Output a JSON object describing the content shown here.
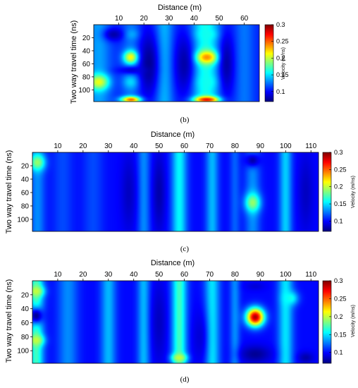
{
  "colors": {
    "jet": [
      "#00007f",
      "#0000ff",
      "#007fff",
      "#00ffff",
      "#7fff7f",
      "#ffff00",
      "#ff7f00",
      "#ff0000",
      "#7f0000"
    ],
    "axis": "#000000",
    "background": "#ffffff"
  },
  "chart_data": [
    {
      "type": "heatmap",
      "caption": "(b)",
      "title": "",
      "xlabel": "Distance (m)",
      "ylabel": "Two way travel time (ns)",
      "x_axis_position": "top",
      "xlim": [
        0,
        66
      ],
      "ylim": [
        0,
        118
      ],
      "y_inverted": true,
      "xticks": [
        10,
        20,
        30,
        40,
        50,
        60
      ],
      "yticks": [
        20,
        40,
        60,
        80,
        100
      ],
      "grid": false,
      "colorbar": {
        "label": "Velocity (m/ns)",
        "range": [
          0.07,
          0.3
        ],
        "ticks": [
          "0.1",
          "0.15",
          "0.2",
          "0.25",
          "0.3"
        ],
        "tick_values": [
          0.1,
          0.15,
          0.2,
          0.25,
          0.3
        ],
        "position": "right"
      },
      "background_value": 0.105,
      "column_bands": [
        {
          "x": 2,
          "w": 5,
          "v": 0.135
        },
        {
          "x": 15,
          "w": 4,
          "v": 0.125
        },
        {
          "x": 28,
          "w": 4,
          "v": 0.14
        },
        {
          "x": 44.5,
          "w": 6,
          "v": 0.16
        },
        {
          "x": 60,
          "w": 4,
          "v": 0.125
        }
      ],
      "anomalies": [
        {
          "x": 15,
          "y": 50,
          "sx": 3,
          "sy": 10,
          "v": 0.22
        },
        {
          "x": 45,
          "y": 50,
          "sx": 4.5,
          "sy": 10,
          "v": 0.24
        },
        {
          "x": 2,
          "y": 88,
          "sx": 4,
          "sy": 12,
          "v": 0.21
        },
        {
          "x": 15,
          "y": 115,
          "sx": 4,
          "sy": 5,
          "v": 0.25
        },
        {
          "x": 45,
          "y": 115,
          "sx": 5,
          "sy": 5,
          "v": 0.27
        },
        {
          "x": 15,
          "y": 88,
          "sx": 3,
          "sy": 10,
          "v": 0.15
        },
        {
          "x": 45,
          "y": 88,
          "sx": 4,
          "sy": 10,
          "v": 0.16
        },
        {
          "x": 15,
          "y": 15,
          "sx": 3,
          "sy": 8,
          "v": 0.14
        },
        {
          "x": 45,
          "y": 15,
          "sx": 4,
          "sy": 8,
          "v": 0.16
        }
      ],
      "lows": [
        {
          "x": 22,
          "y": 60,
          "sx": 4,
          "sy": 50,
          "v": 0.075
        },
        {
          "x": 36,
          "y": 60,
          "sx": 4,
          "sy": 50,
          "v": 0.08
        },
        {
          "x": 53,
          "y": 60,
          "sx": 3,
          "sy": 50,
          "v": 0.08
        },
        {
          "x": 8,
          "y": 15,
          "sx": 4,
          "sy": 10,
          "v": 0.08
        },
        {
          "x": 15,
          "y": 70,
          "sx": 6,
          "sy": 6,
          "v": 0.09
        }
      ]
    },
    {
      "type": "heatmap",
      "caption": "(c)",
      "title": "",
      "xlabel": "Distance (m)",
      "ylabel": "Two way travel time (ns)",
      "x_axis_position": "top",
      "xlim": [
        0,
        113
      ],
      "ylim": [
        0,
        118
      ],
      "y_inverted": true,
      "xticks": [
        10,
        20,
        30,
        40,
        50,
        60,
        70,
        80,
        90,
        100,
        110
      ],
      "yticks": [
        20,
        40,
        60,
        80,
        100
      ],
      "grid": false,
      "colorbar": {
        "label": "Velocity (m/ns)",
        "range": [
          0.07,
          0.3
        ],
        "ticks": [
          "0.1",
          "0.15",
          "0.2",
          "0.25",
          "0.3"
        ],
        "tick_values": [
          0.1,
          0.15,
          0.2,
          0.25,
          0.3
        ],
        "position": "right"
      },
      "background_value": 0.1,
      "column_bands": [
        {
          "x": 2,
          "w": 3,
          "v": 0.13
        },
        {
          "x": 12,
          "w": 4,
          "v": 0.115
        },
        {
          "x": 24,
          "w": 4,
          "v": 0.115
        },
        {
          "x": 44,
          "w": 2.5,
          "v": 0.13
        },
        {
          "x": 58,
          "w": 3,
          "v": 0.155
        },
        {
          "x": 71,
          "w": 2.5,
          "v": 0.14
        },
        {
          "x": 80,
          "w": 2,
          "v": 0.12
        },
        {
          "x": 87,
          "w": 3,
          "v": 0.13
        },
        {
          "x": 100,
          "w": 2.5,
          "v": 0.145
        }
      ],
      "anomalies": [
        {
          "x": 2,
          "y": 15,
          "sx": 3,
          "sy": 12,
          "v": 0.19
        },
        {
          "x": 87,
          "y": 75,
          "sx": 3,
          "sy": 14,
          "v": 0.19
        }
      ],
      "lows": [
        {
          "x": 50,
          "y": 60,
          "sx": 2.5,
          "sy": 60,
          "v": 0.08
        },
        {
          "x": 38,
          "y": 60,
          "sx": 3,
          "sy": 60,
          "v": 0.085
        },
        {
          "x": 87,
          "y": 12,
          "sx": 3,
          "sy": 10,
          "v": 0.08
        },
        {
          "x": 108,
          "y": 60,
          "sx": 3,
          "sy": 60,
          "v": 0.085
        }
      ]
    },
    {
      "type": "heatmap",
      "caption": "(d)",
      "title": "",
      "xlabel": "Distance (m)",
      "ylabel": "Two way travel time (ns)",
      "x_axis_position": "top",
      "xlim": [
        0,
        113
      ],
      "ylim": [
        0,
        118
      ],
      "y_inverted": true,
      "xticks": [
        10,
        20,
        30,
        40,
        50,
        60,
        70,
        80,
        90,
        100,
        110
      ],
      "yticks": [
        20,
        40,
        60,
        80,
        100
      ],
      "grid": false,
      "colorbar": {
        "label": "Velocity (m/ns)",
        "range": [
          0.07,
          0.3
        ],
        "ticks": [
          "0.1",
          "0.15",
          "0.2",
          "0.25",
          "0.3"
        ],
        "tick_values": [
          0.1,
          0.15,
          0.2,
          0.25,
          0.3
        ],
        "position": "right"
      },
      "background_value": 0.1,
      "column_bands": [
        {
          "x": 1.5,
          "w": 3,
          "v": 0.17
        },
        {
          "x": 14,
          "w": 4,
          "v": 0.13
        },
        {
          "x": 30,
          "w": 3,
          "v": 0.14
        },
        {
          "x": 44,
          "w": 2.5,
          "v": 0.14
        },
        {
          "x": 58,
          "w": 3,
          "v": 0.17
        },
        {
          "x": 71,
          "w": 3,
          "v": 0.15
        },
        {
          "x": 80,
          "w": 2,
          "v": 0.13
        },
        {
          "x": 100,
          "w": 3,
          "v": 0.15
        }
      ],
      "anomalies": [
        {
          "x": 88,
          "y": 52,
          "sx": 3.5,
          "sy": 13,
          "v": 0.29
        },
        {
          "x": 1.5,
          "y": 15,
          "sx": 3,
          "sy": 8,
          "v": 0.2
        },
        {
          "x": 1.5,
          "y": 85,
          "sx": 3,
          "sy": 8,
          "v": 0.2
        },
        {
          "x": 58,
          "y": 110,
          "sx": 3,
          "sy": 6,
          "v": 0.2
        },
        {
          "x": 102,
          "y": 25,
          "sx": 3,
          "sy": 10,
          "v": 0.16
        }
      ],
      "lows": [
        {
          "x": 1.5,
          "y": 50,
          "sx": 3,
          "sy": 12,
          "v": 0.075
        },
        {
          "x": 88,
          "y": 105,
          "sx": 6,
          "sy": 12,
          "v": 0.075
        },
        {
          "x": 88,
          "y": 8,
          "sx": 4,
          "sy": 6,
          "v": 0.09
        },
        {
          "x": 50,
          "y": 60,
          "sx": 3,
          "sy": 60,
          "v": 0.085
        },
        {
          "x": 66,
          "y": 80,
          "sx": 3,
          "sy": 40,
          "v": 0.09
        },
        {
          "x": 108,
          "y": 110,
          "sx": 3,
          "sy": 8,
          "v": 0.08
        }
      ]
    }
  ]
}
